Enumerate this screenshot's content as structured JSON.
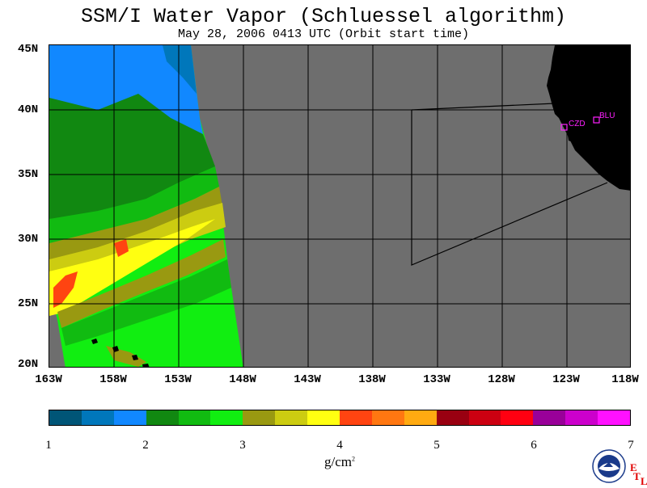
{
  "header": {
    "title": "SSM/I Water Vapor (Schluessel algorithm)",
    "subtitle": "May 28, 2006  0413 UTC  (Orbit start time)"
  },
  "map": {
    "lat_labels": [
      "45N",
      "40N",
      "35N",
      "30N",
      "25N",
      "20N"
    ],
    "lon_labels": [
      "163W",
      "158W",
      "153W",
      "148W",
      "143W",
      "138W",
      "133W",
      "128W",
      "123W",
      "118W"
    ],
    "stations": [
      {
        "name": "CZD"
      },
      {
        "name": "BLU"
      }
    ],
    "colors": {
      "no_data": "#6e6e6e",
      "land": "#000000",
      "grid": "#000000",
      "station": "#ff20ff"
    }
  },
  "colorbar": {
    "ticks": [
      "1",
      "2",
      "3",
      "4",
      "5",
      "6",
      "7"
    ],
    "unit": "g/cm",
    "unit_sup": "2",
    "colors": [
      "#005577",
      "#0077bb",
      "#1188ff",
      "#118811",
      "#11bb11",
      "#11ee11",
      "#999911",
      "#cccc11",
      "#ffff11",
      "#ff4411",
      "#ff7711",
      "#ffaa11",
      "#990011",
      "#cc0011",
      "#ff0011",
      "#990099",
      "#cc00cc",
      "#ff11ff"
    ]
  },
  "logo": {
    "text": "NOAA",
    "etl": [
      "E",
      "T",
      "L"
    ]
  }
}
